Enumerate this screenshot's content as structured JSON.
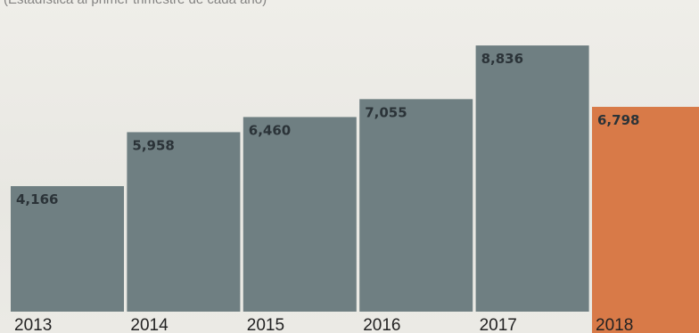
{
  "chart_data": {
    "type": "bar",
    "subtitle": "(Estadística al primer trimestre de cada año)",
    "categories": [
      "2013",
      "2014",
      "2015",
      "2016",
      "2017",
      "2018"
    ],
    "values": [
      4166,
      5958,
      6460,
      7055,
      8836,
      6798
    ],
    "value_labels": [
      "4,166",
      "5,958",
      "6,460",
      "7,055",
      "8,836",
      "6,798"
    ],
    "ylim": [
      0,
      10050
    ],
    "grid": false,
    "colors": {
      "default_bar": "#6f7f82",
      "highlight_bar": "#d87a48",
      "highlight_category": "2018"
    }
  }
}
